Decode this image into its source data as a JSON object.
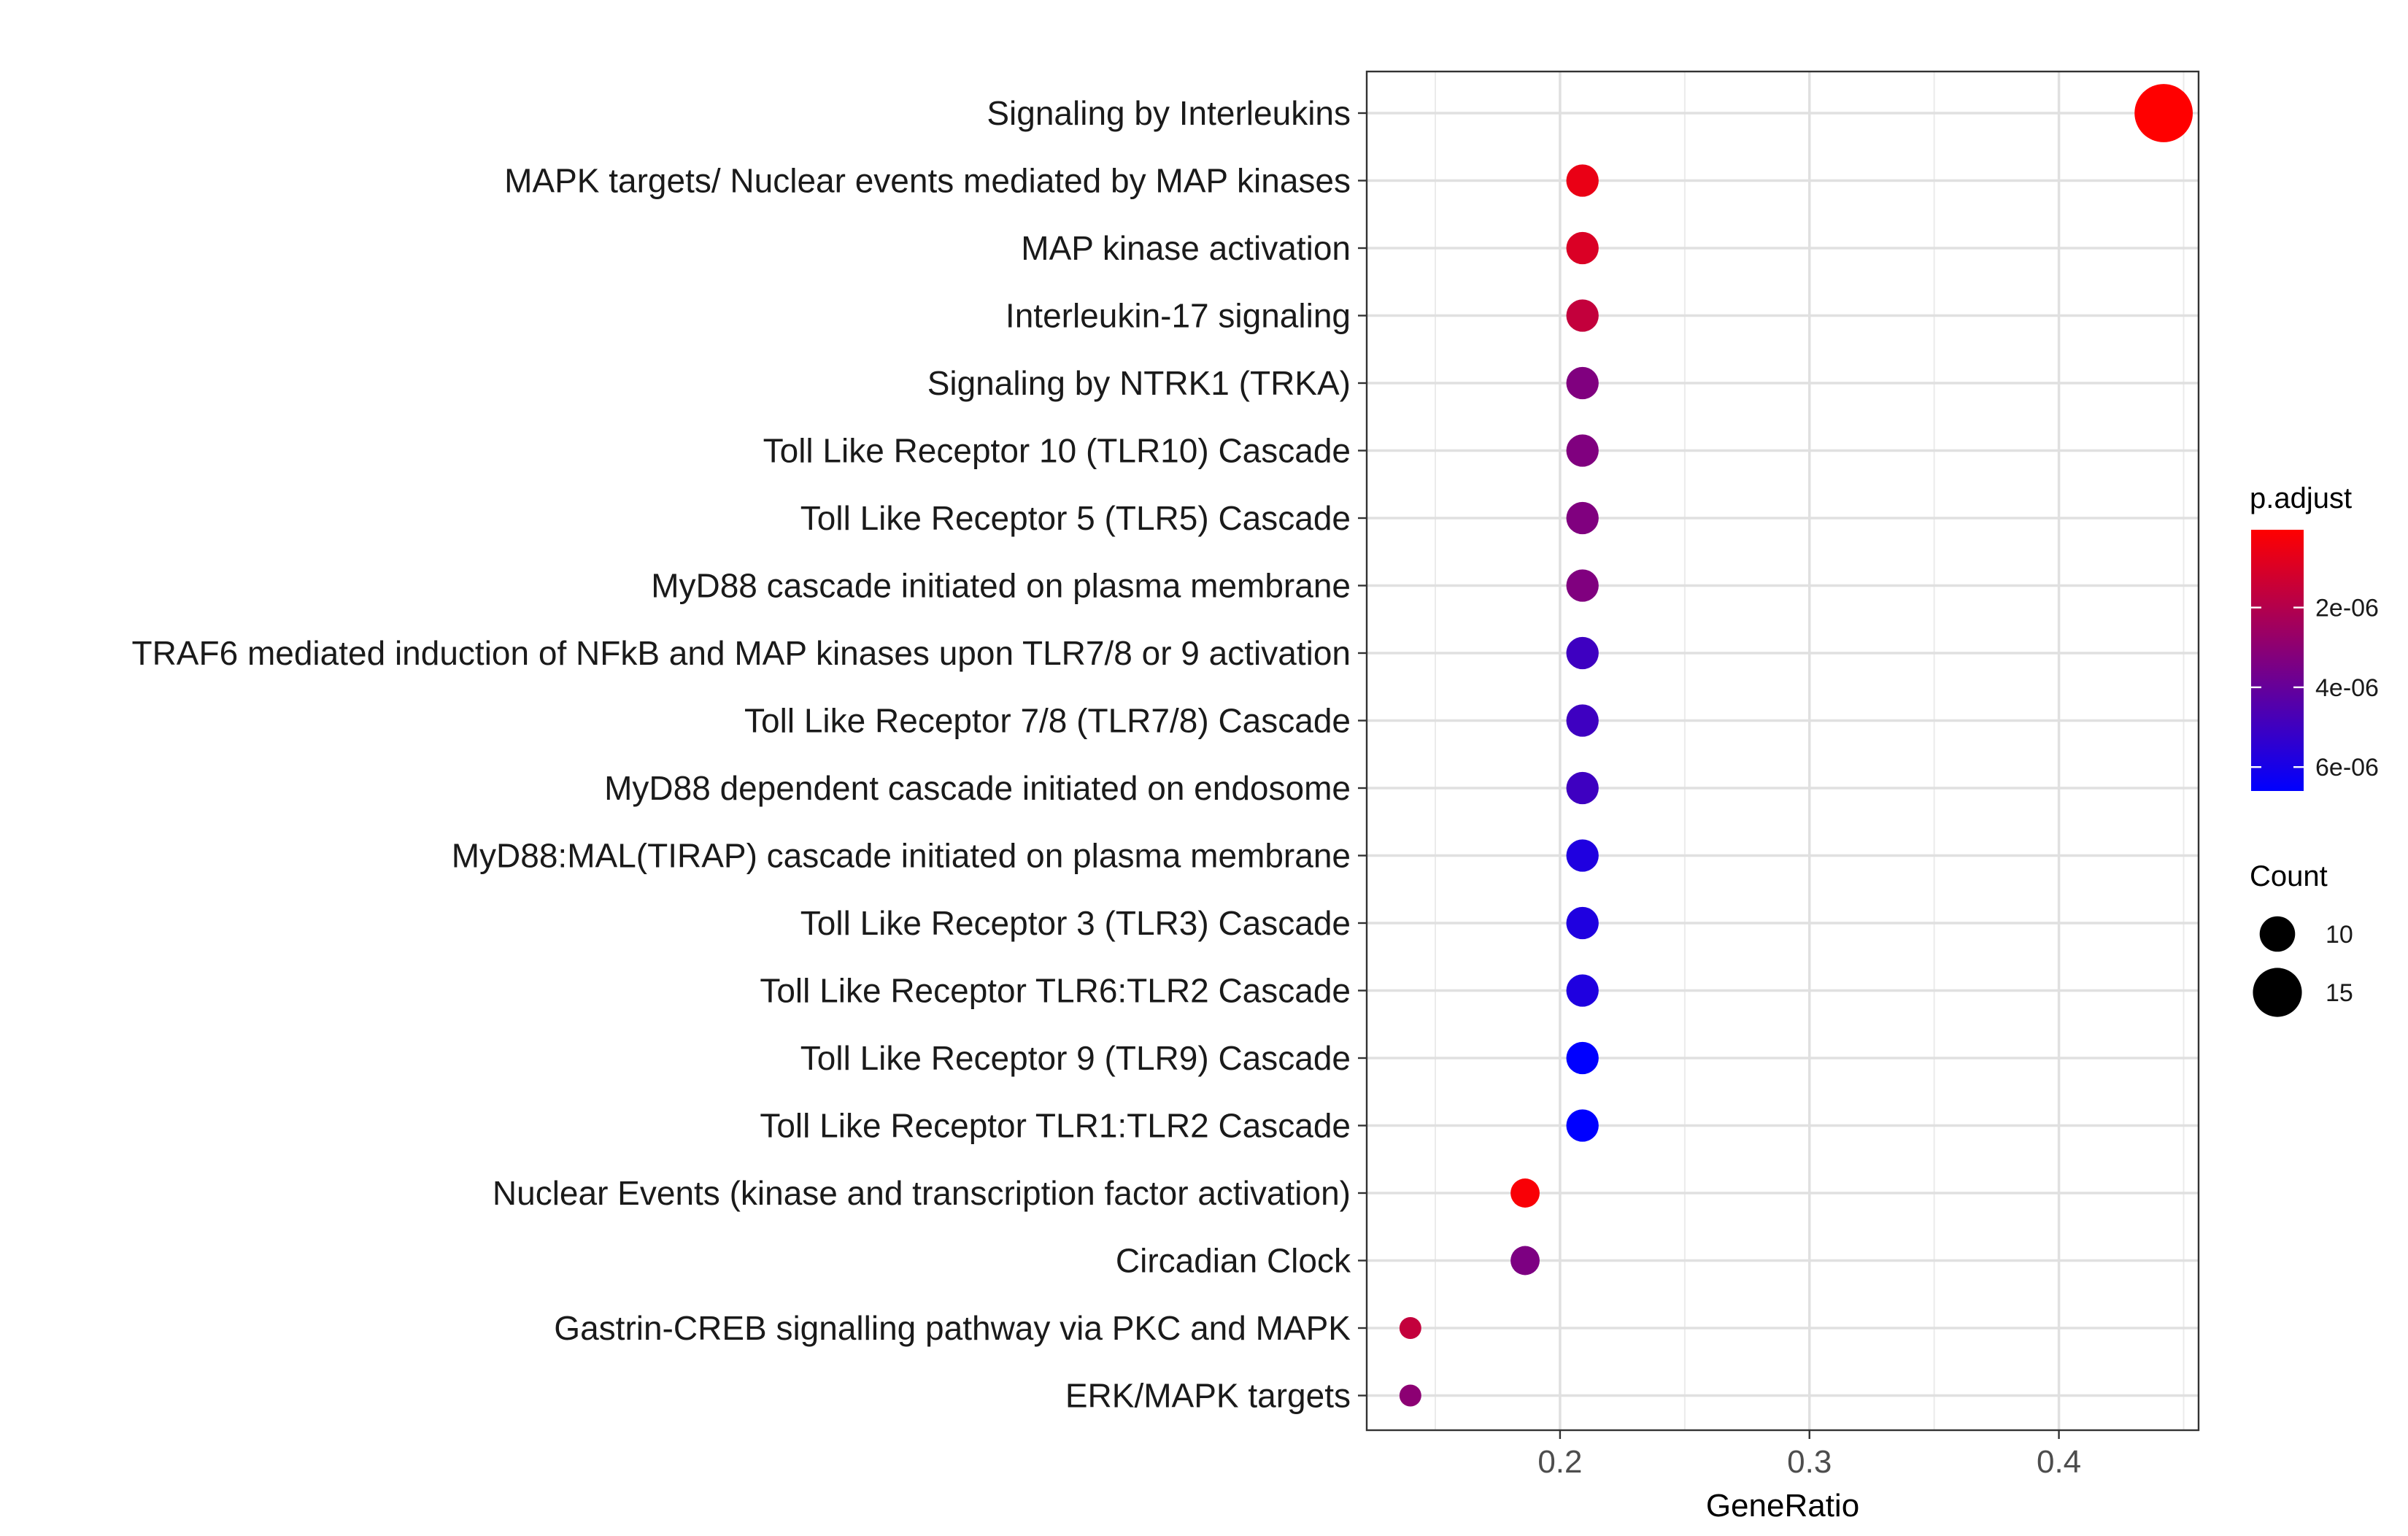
{
  "chart_data": {
    "type": "scatter",
    "xlabel": "GeneRatio",
    "ylabel": "",
    "xlim": [
      0.1225,
      0.456
    ],
    "x_ticks": [
      0.2,
      0.3,
      0.4
    ],
    "x_tick_labels": [
      "0.2",
      "0.3",
      "0.4"
    ],
    "grid": true,
    "legend_position": "right",
    "categories": [
      "Signaling by Interleukins",
      "MAPK targets/ Nuclear events mediated by MAP kinases",
      "MAP kinase activation",
      "Interleukin-17 signaling",
      "Signaling by NTRK1 (TRKA)",
      "Toll Like Receptor 10 (TLR10) Cascade",
      "Toll Like Receptor 5 (TLR5) Cascade",
      "MyD88 cascade initiated on plasma membrane",
      "TRAF6 mediated induction of NFkB and MAP kinases upon TLR7/8 or 9 activation",
      "Toll Like Receptor 7/8 (TLR7/8) Cascade",
      "MyD88 dependent cascade initiated on endosome",
      "MyD88:MAL(TIRAP) cascade initiated on plasma membrane",
      "Toll Like Receptor 3 (TLR3) Cascade",
      "Toll Like Receptor TLR6:TLR2 Cascade",
      "Toll Like Receptor 9 (TLR9) Cascade",
      "Toll Like Receptor TLR1:TLR2 Cascade",
      "Nuclear Events (kinase and transcription factor activation)",
      "Circadian Clock",
      "Gastrin-CREB signalling pathway via PKC and MAPK",
      "ERK/MAPK targets"
    ],
    "points": [
      {
        "term": "Signaling by Interleukins",
        "gene_ratio": 0.442,
        "count": 19,
        "p_adjust": 5e-08
      },
      {
        "term": "MAPK targets/ Nuclear events mediated by MAP kinases",
        "gene_ratio": 0.209,
        "count": 9,
        "p_adjust": 6e-07
      },
      {
        "term": "MAP kinase activation",
        "gene_ratio": 0.209,
        "count": 9,
        "p_adjust": 1e-06
      },
      {
        "term": "Interleukin-17 signaling",
        "gene_ratio": 0.209,
        "count": 9,
        "p_adjust": 1.6e-06
      },
      {
        "term": "Signaling by NTRK1 (TRKA)",
        "gene_ratio": 0.209,
        "count": 9,
        "p_adjust": 3.3e-06
      },
      {
        "term": "Toll Like Receptor 10 (TLR10) Cascade",
        "gene_ratio": 0.209,
        "count": 9,
        "p_adjust": 3.3e-06
      },
      {
        "term": "Toll Like Receptor 5 (TLR5) Cascade",
        "gene_ratio": 0.209,
        "count": 9,
        "p_adjust": 3.3e-06
      },
      {
        "term": "MyD88 cascade initiated on plasma membrane",
        "gene_ratio": 0.209,
        "count": 9,
        "p_adjust": 3.3e-06
      },
      {
        "term": "TRAF6 mediated induction of NFkB and MAP kinases upon TLR7/8 or 9 activation",
        "gene_ratio": 0.209,
        "count": 9,
        "p_adjust": 5e-06
      },
      {
        "term": "Toll Like Receptor 7/8 (TLR7/8) Cascade",
        "gene_ratio": 0.209,
        "count": 9,
        "p_adjust": 5e-06
      },
      {
        "term": "MyD88 dependent cascade initiated on endosome",
        "gene_ratio": 0.209,
        "count": 9,
        "p_adjust": 5e-06
      },
      {
        "term": "MyD88:MAL(TIRAP) cascade initiated on plasma membrane",
        "gene_ratio": 0.209,
        "count": 9,
        "p_adjust": 5.8e-06
      },
      {
        "term": "Toll Like Receptor 3 (TLR3) Cascade",
        "gene_ratio": 0.209,
        "count": 9,
        "p_adjust": 5.8e-06
      },
      {
        "term": "Toll Like Receptor TLR6:TLR2 Cascade",
        "gene_ratio": 0.209,
        "count": 9,
        "p_adjust": 5.8e-06
      },
      {
        "term": "Toll Like Receptor 9 (TLR9) Cascade",
        "gene_ratio": 0.209,
        "count": 9,
        "p_adjust": 6.6e-06
      },
      {
        "term": "Toll Like Receptor TLR1:TLR2 Cascade",
        "gene_ratio": 0.209,
        "count": 9,
        "p_adjust": 6.6e-06
      },
      {
        "term": "Nuclear Events (kinase and transcription factor activation)",
        "gene_ratio": 0.186,
        "count": 8,
        "p_adjust": 2e-07
      },
      {
        "term": "Circadian Clock",
        "gene_ratio": 0.186,
        "count": 8,
        "p_adjust": 3.4e-06
      },
      {
        "term": "Gastrin-CREB signalling pathway via PKC and MAPK",
        "gene_ratio": 0.14,
        "count": 6,
        "p_adjust": 1.6e-06
      },
      {
        "term": "ERK/MAPK targets",
        "gene_ratio": 0.14,
        "count": 6,
        "p_adjust": 3e-06
      }
    ],
    "color_legend": {
      "title": "p.adjust",
      "low_color": "#FF0000",
      "high_color": "#0000FF",
      "range": [
        5e-08,
        6.6e-06
      ],
      "ticks": [
        2e-06,
        4e-06,
        6e-06
      ],
      "tick_labels": [
        "2e-06",
        "4e-06",
        "6e-06"
      ]
    },
    "size_legend": {
      "title": "Count",
      "values": [
        10,
        15
      ],
      "labels": [
        "10",
        "15"
      ],
      "size_range": [
        6,
        19
      ],
      "color": "#000000"
    }
  }
}
